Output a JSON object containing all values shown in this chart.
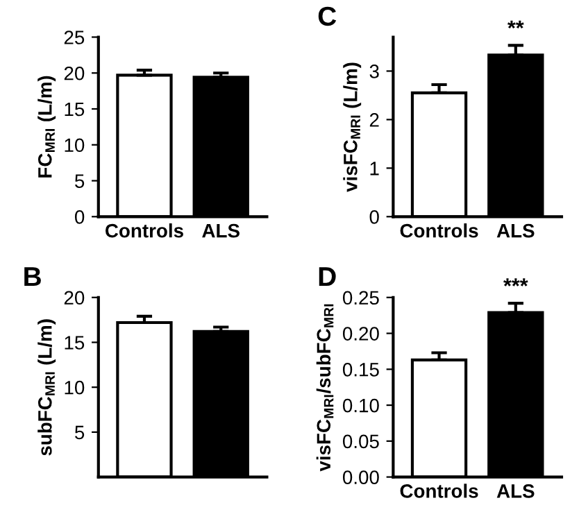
{
  "chart_data": [
    {
      "type": "bar",
      "ylabel": "FC$_{MRI}$ (L/m)",
      "categories": [
        "Controls",
        "ALS"
      ],
      "values": [
        19.7,
        19.4
      ],
      "errors": [
        0.7,
        0.6
      ],
      "colors": [
        "#ffffff",
        "#000000"
      ],
      "ylim": [
        0,
        25
      ],
      "yticks": [
        0,
        5,
        10,
        15,
        20,
        25
      ],
      "grid": false,
      "legend": false
    },
    {
      "type": "bar",
      "title": "C",
      "ylabel": "visFC$_{MRI}$ (L/m)",
      "categories": [
        "Controls",
        "ALS"
      ],
      "values": [
        2.55,
        3.33
      ],
      "errors": [
        0.17,
        0.2
      ],
      "colors": [
        "#ffffff",
        "#000000"
      ],
      "ylim": [
        0,
        3.7
      ],
      "yticks": [
        0,
        1,
        2,
        3
      ],
      "annotations": [
        "**"
      ],
      "grid": false,
      "legend": false
    },
    {
      "type": "bar",
      "title": "B",
      "ylabel": "subFC$_{MRI}$ (L/m)",
      "categories": [
        null,
        null
      ],
      "values": [
        17.2,
        16.2
      ],
      "errors": [
        0.7,
        0.5
      ],
      "colors": [
        "#ffffff",
        "#000000"
      ],
      "ylim": [
        0,
        20
      ],
      "yticks": [
        5,
        10,
        15,
        20
      ],
      "grid": false,
      "legend": false
    },
    {
      "type": "bar",
      "title": "D",
      "ylabel": "visFC$_{MRI}$/subFC$_{MRI}$",
      "categories": [
        "Controls",
        "ALS"
      ],
      "values": [
        0.163,
        0.229
      ],
      "errors": [
        0.01,
        0.013
      ],
      "colors": [
        "#ffffff",
        "#000000"
      ],
      "ylim": [
        0,
        0.25
      ],
      "yticks": [
        {
          "value": 0,
          "label": "0.00"
        },
        {
          "value": 0.05,
          "label": "0.05"
        },
        {
          "value": 0.1,
          "label": "0.10"
        },
        {
          "value": 0.15,
          "label": "0.15"
        },
        {
          "value": 0.2,
          "label": "0.20"
        },
        {
          "value": 0.25,
          "label": "0.25"
        }
      ],
      "annotations": [
        "***"
      ],
      "grid": false,
      "legend": false
    }
  ]
}
